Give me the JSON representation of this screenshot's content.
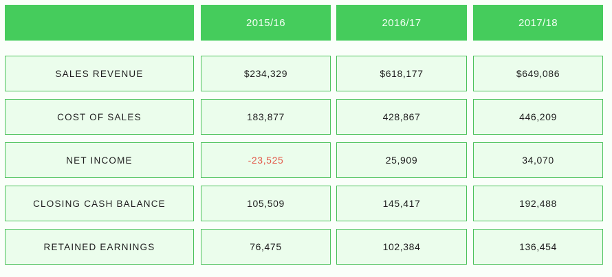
{
  "table": {
    "header": {
      "corner": "",
      "years": [
        "2015/16",
        "2016/17",
        "2017/18"
      ]
    },
    "rows": [
      {
        "label": "SALES REVENUE",
        "values": [
          "$234,329",
          "$618,177",
          "$649,086"
        ]
      },
      {
        "label": "COST OF SALES",
        "values": [
          "183,877",
          "428,867",
          "446,209"
        ]
      },
      {
        "label": "NET INCOME",
        "values": [
          "-23,525",
          "25,909",
          "34,070"
        ]
      },
      {
        "label": "CLOSING CASH BALANCE",
        "values": [
          "105,509",
          "145,417",
          "192,488"
        ]
      },
      {
        "label": "RETAINED EARNINGS",
        "values": [
          "76,475",
          "102,384",
          "136,454"
        ]
      }
    ]
  },
  "colors": {
    "header_bg": "#45cc5c",
    "cell_bg": "#ebfdec",
    "cell_border": "#4cc25c",
    "negative_text": "#e35b4c"
  }
}
